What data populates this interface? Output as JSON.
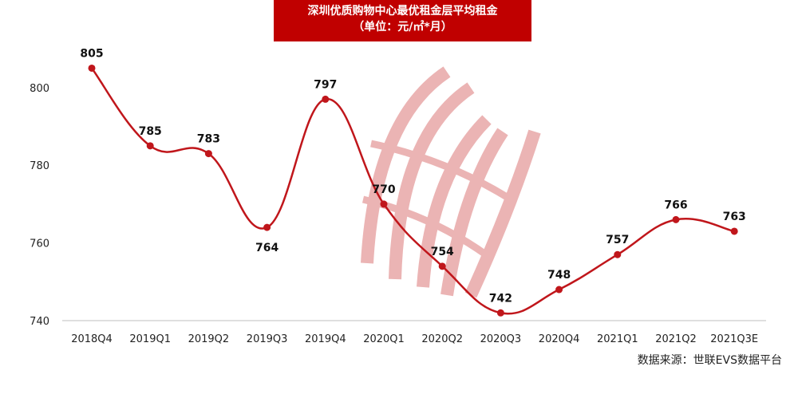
{
  "title": "深圳优质购物中心最优租金层平均租金",
  "subtitle": "（单位：元/㎡*月）",
  "source": "数据来源：世联EVS数据平台",
  "colors": {
    "accent": "#c00000",
    "line": "#c0161b",
    "watermark": "#e8a8a8"
  },
  "chart_data": {
    "type": "line",
    "categories": [
      "2018Q4",
      "2019Q1",
      "2019Q2",
      "2019Q3",
      "2019Q4",
      "2020Q1",
      "2020Q2",
      "2020Q3",
      "2020Q4",
      "2021Q1",
      "2021Q2",
      "2021Q3E"
    ],
    "values": [
      805,
      785,
      783,
      764,
      797,
      770,
      754,
      742,
      748,
      757,
      766,
      763
    ],
    "ylim": [
      740,
      810
    ],
    "yticks": [
      740,
      760,
      780,
      800
    ],
    "label_position": [
      "above",
      "above",
      "above",
      "below",
      "above",
      "above",
      "above",
      "above",
      "above",
      "above",
      "above",
      "above"
    ],
    "grid": false,
    "legend": "none",
    "smooth": true
  }
}
